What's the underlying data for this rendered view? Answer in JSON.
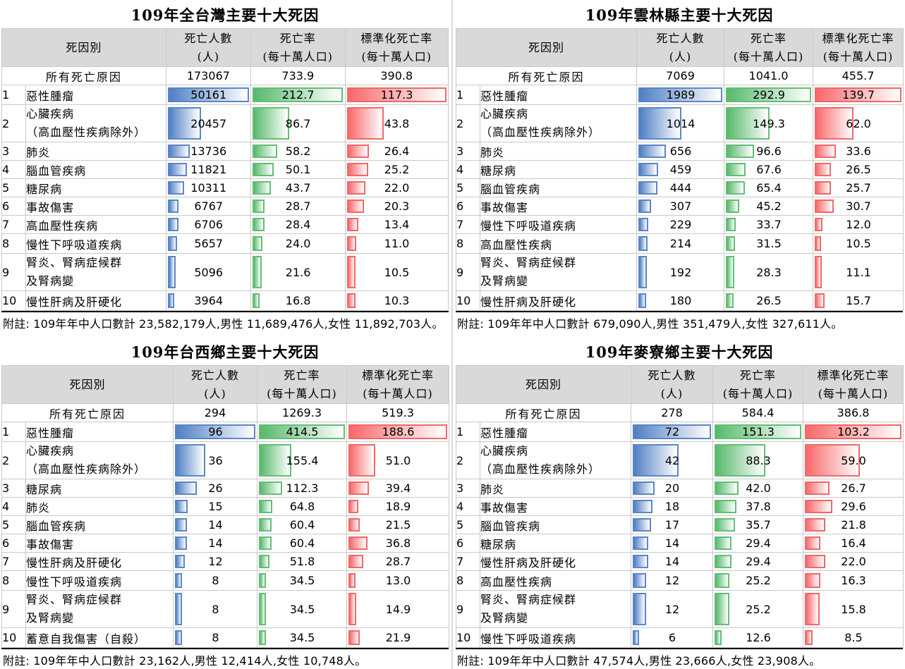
{
  "labels": {
    "cause_header": "死因別",
    "deaths_header": [
      "死亡人數",
      "(人)"
    ],
    "rate_header": [
      "死亡率",
      "(每十萬人口)"
    ],
    "std_header": [
      "標準化死亡率",
      "(每十萬人口)"
    ],
    "all_causes": "所有死亡原因"
  },
  "panels": [
    {
      "title": "109年全台灣主要十大死因",
      "all": {
        "deaths": "173067",
        "rate": "733.9",
        "std": "390.8"
      },
      "rows": [
        {
          "rank": "1",
          "cause": [
            "惡性腫瘤"
          ],
          "deaths": 50161,
          "rate": 212.7,
          "std": 117.3
        },
        {
          "rank": "2",
          "cause": [
            "心臟疾病",
            "（高血壓性疾病除外）"
          ],
          "deaths": 20457,
          "rate": 86.7,
          "std": 43.8
        },
        {
          "rank": "3",
          "cause": [
            "肺炎"
          ],
          "deaths": 13736,
          "rate": 58.2,
          "std": 26.4
        },
        {
          "rank": "4",
          "cause": [
            "腦血管疾病"
          ],
          "deaths": 11821,
          "rate": 50.1,
          "std": 25.2
        },
        {
          "rank": "5",
          "cause": [
            "糖尿病"
          ],
          "deaths": 10311,
          "rate": 43.7,
          "std": 22.0
        },
        {
          "rank": "6",
          "cause": [
            "事故傷害"
          ],
          "deaths": 6767,
          "rate": 28.7,
          "std": 20.3
        },
        {
          "rank": "7",
          "cause": [
            "高血壓性疾病"
          ],
          "deaths": 6706,
          "rate": 28.4,
          "std": 13.4
        },
        {
          "rank": "8",
          "cause": [
            "慢性下呼吸道疾病"
          ],
          "deaths": 5657,
          "rate": 24.0,
          "std": 11.0
        },
        {
          "rank": "9",
          "cause": [
            "腎炎、腎病症候群",
            "及腎病變"
          ],
          "deaths": 5096,
          "rate": 21.6,
          "std": 10.5
        },
        {
          "rank": "10",
          "cause": [
            "慢性肝病及肝硬化"
          ],
          "deaths": 3964,
          "rate": 16.8,
          "std": 10.3
        }
      ],
      "note": "附註: 109年年中人口數計 23,582,179人,男性 11,689,476人,女性 11,892,703人。"
    },
    {
      "title": "109年雲林縣主要十大死因",
      "all": {
        "deaths": "7069",
        "rate": "1041.0",
        "std": "455.7"
      },
      "rows": [
        {
          "rank": "1",
          "cause": [
            "惡性腫瘤"
          ],
          "deaths": 1989,
          "rate": 292.9,
          "std": 139.7
        },
        {
          "rank": "2",
          "cause": [
            "心臟疾病",
            "（高血壓性疾病除外）"
          ],
          "deaths": 1014,
          "rate": 149.3,
          "std": 62.0
        },
        {
          "rank": "3",
          "cause": [
            "肺炎"
          ],
          "deaths": 656,
          "rate": 96.6,
          "std": 33.6
        },
        {
          "rank": "4",
          "cause": [
            "糖尿病"
          ],
          "deaths": 459,
          "rate": 67.6,
          "std": 26.5
        },
        {
          "rank": "5",
          "cause": [
            "腦血管疾病"
          ],
          "deaths": 444,
          "rate": 65.4,
          "std": 25.7
        },
        {
          "rank": "6",
          "cause": [
            "事故傷害"
          ],
          "deaths": 307,
          "rate": 45.2,
          "std": 30.7
        },
        {
          "rank": "7",
          "cause": [
            "慢性下呼吸道疾病"
          ],
          "deaths": 229,
          "rate": 33.7,
          "std": 12.0
        },
        {
          "rank": "8",
          "cause": [
            "高血壓性疾病"
          ],
          "deaths": 214,
          "rate": 31.5,
          "std": 10.5
        },
        {
          "rank": "9",
          "cause": [
            "腎炎、腎病症候群",
            "及腎病變"
          ],
          "deaths": 192,
          "rate": 28.3,
          "std": 11.1
        },
        {
          "rank": "10",
          "cause": [
            "慢性肝病及肝硬化"
          ],
          "deaths": 180,
          "rate": 26.5,
          "std": 15.7
        }
      ],
      "note": "附註: 109年年中人口數計 679,090人,男性 351,479人,女性 327,611人。"
    },
    {
      "title": "109年台西鄉主要十大死因",
      "all": {
        "deaths": "294",
        "rate": "1269.3",
        "std": "519.3"
      },
      "rows": [
        {
          "rank": "1",
          "cause": [
            "惡性腫瘤"
          ],
          "deaths": 96,
          "rate": 414.5,
          "std": 188.6
        },
        {
          "rank": "2",
          "cause": [
            "心臟疾病",
            "（高血壓性疾病除外）"
          ],
          "deaths": 36,
          "rate": 155.4,
          "std": 51.0
        },
        {
          "rank": "3",
          "cause": [
            "糖尿病"
          ],
          "deaths": 26,
          "rate": 112.3,
          "std": 39.4
        },
        {
          "rank": "4",
          "cause": [
            "肺炎"
          ],
          "deaths": 15,
          "rate": 64.8,
          "std": 18.9
        },
        {
          "rank": "5",
          "cause": [
            "腦血管疾病"
          ],
          "deaths": 14,
          "rate": 60.4,
          "std": 21.5
        },
        {
          "rank": "6",
          "cause": [
            "事故傷害"
          ],
          "deaths": 14,
          "rate": 60.4,
          "std": 36.8
        },
        {
          "rank": "7",
          "cause": [
            "慢性肝病及肝硬化"
          ],
          "deaths": 12,
          "rate": 51.8,
          "std": 28.7
        },
        {
          "rank": "8",
          "cause": [
            "慢性下呼吸道疾病"
          ],
          "deaths": 8,
          "rate": 34.5,
          "std": 13.0
        },
        {
          "rank": "9",
          "cause": [
            "腎炎、腎病症候群",
            "及腎病變"
          ],
          "deaths": 8,
          "rate": 34.5,
          "std": 14.9
        },
        {
          "rank": "10",
          "cause": [
            "蓄意自我傷害（自殺）"
          ],
          "deaths": 8,
          "rate": 34.5,
          "std": 21.9
        }
      ],
      "note": "附註: 109年年中人口數計 23,162人,男性 12,414人,女性 10,748人。"
    },
    {
      "title": "109年麥寮鄉主要十大死因",
      "all": {
        "deaths": "278",
        "rate": "584.4",
        "std": "386.8"
      },
      "rows": [
        {
          "rank": "1",
          "cause": [
            "惡性腫瘤"
          ],
          "deaths": 72,
          "rate": 151.3,
          "std": 103.2
        },
        {
          "rank": "2",
          "cause": [
            "心臟疾病",
            "（高血壓性疾病除外）"
          ],
          "deaths": 42,
          "rate": 88.3,
          "std": 59.0
        },
        {
          "rank": "3",
          "cause": [
            "肺炎"
          ],
          "deaths": 20,
          "rate": 42.0,
          "std": 26.7
        },
        {
          "rank": "4",
          "cause": [
            "事故傷害"
          ],
          "deaths": 18,
          "rate": 37.8,
          "std": 29.6
        },
        {
          "rank": "5",
          "cause": [
            "腦血管疾病"
          ],
          "deaths": 17,
          "rate": 35.7,
          "std": 21.8
        },
        {
          "rank": "6",
          "cause": [
            "糖尿病"
          ],
          "deaths": 14,
          "rate": 29.4,
          "std": 16.4
        },
        {
          "rank": "7",
          "cause": [
            "慢性肝病及肝硬化"
          ],
          "deaths": 14,
          "rate": 29.4,
          "std": 22.0
        },
        {
          "rank": "8",
          "cause": [
            "高血壓性疾病"
          ],
          "deaths": 12,
          "rate": 25.2,
          "std": 16.3
        },
        {
          "rank": "9",
          "cause": [
            "腎炎、腎病症候群",
            "及腎病變"
          ],
          "deaths": 12,
          "rate": 25.2,
          "std": 15.8
        },
        {
          "rank": "10",
          "cause": [
            "慢性下呼吸道疾病"
          ],
          "deaths": 6,
          "rate": 12.6,
          "std": 8.5
        }
      ],
      "note": "附註: 109年年中人口數計 47,574人,男性 23,666人,女性 23,908人。"
    }
  ]
}
